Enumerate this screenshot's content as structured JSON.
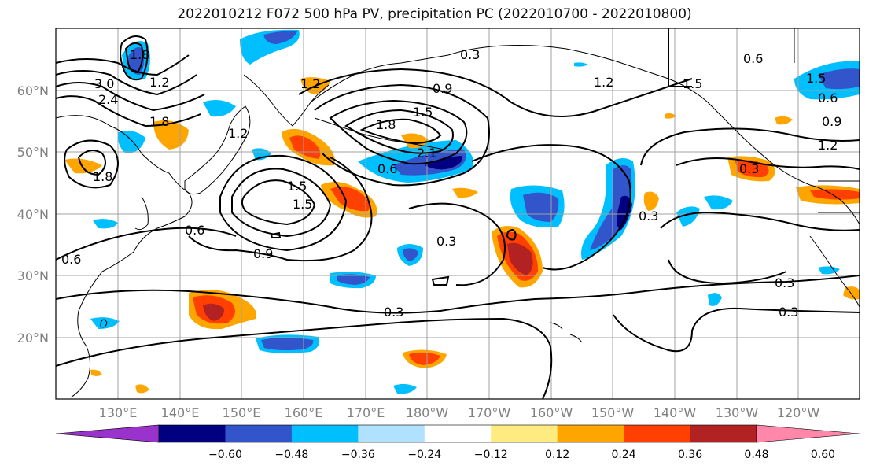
{
  "title": "2022010212 F072 500 hPa PV, precipitation PC (2022010700 - 2022010800)",
  "lat_labels": [
    "60°N",
    "50°N",
    "40°N",
    "30°N",
    "20°N"
  ],
  "lon_labels": [
    "130°E",
    "140°E",
    "150°E",
    "160°E",
    "170°E",
    "180°W",
    "170°W",
    "160°W",
    "150°W",
    "140°W",
    "130°W",
    "120°W"
  ],
  "contour_labels": [
    "3.0",
    "2.4",
    "1.8",
    "1.2",
    "1.2",
    "1.8",
    "1.5",
    "0.6",
    "0.6",
    "0.9",
    "1.5",
    "1.8",
    "0.3",
    "0.6",
    "0.9",
    "1.5",
    "1.8",
    "2.1",
    "1.5",
    "0.6",
    "0.3",
    "0.3",
    "0.6",
    "1.2",
    "1.5",
    "0.3",
    "0.3",
    "0.3",
    "1.2",
    "0.9",
    "0.3",
    "1.2"
  ],
  "colorbar": {
    "tick_labels": [
      "−0.60",
      "−0.48",
      "−0.36",
      "−0.24",
      "−0.12",
      "0.12",
      "0.24",
      "0.36",
      "0.48",
      "0.60"
    ],
    "colors": [
      "#9933cc",
      "#000080",
      "#3355cc",
      "#00bfff",
      "#b0e2ff",
      "#ffffff",
      "#ffeb80",
      "#ffa500",
      "#ff4000",
      "#b22222",
      "#ff88aa"
    ]
  }
}
